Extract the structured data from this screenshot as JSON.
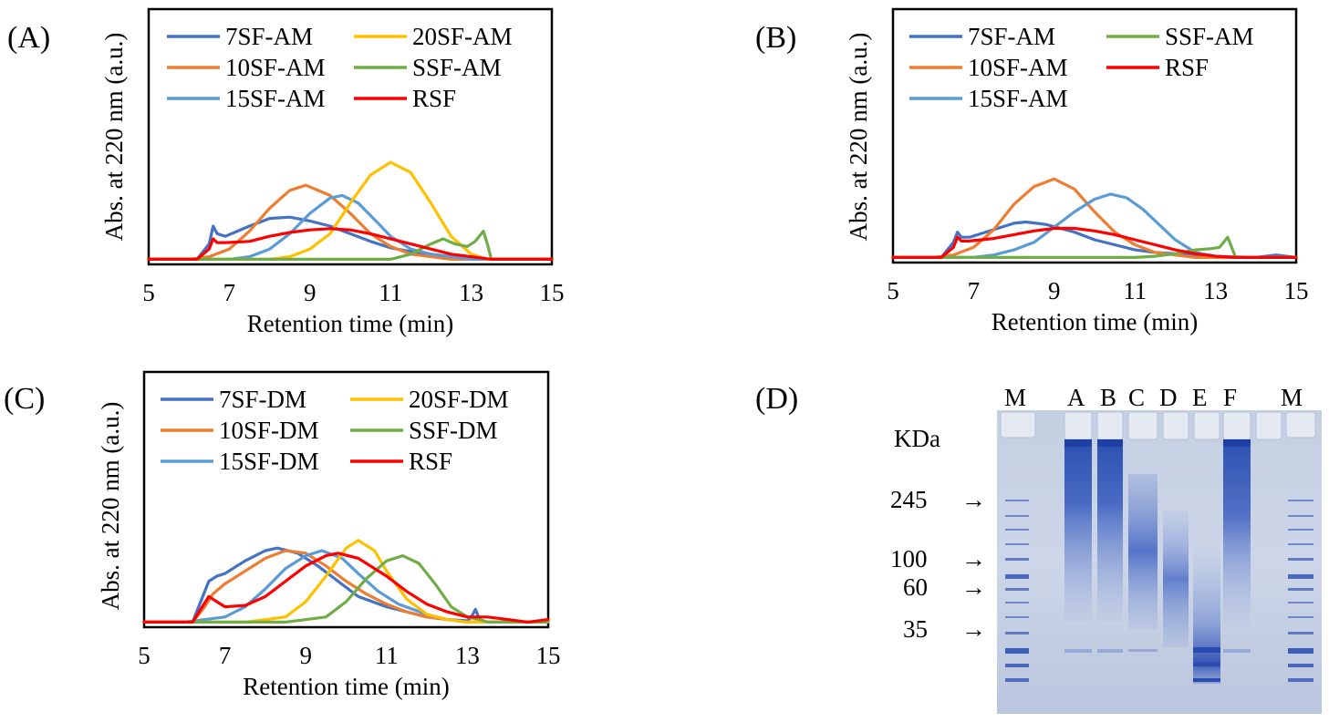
{
  "chart_data": [
    {
      "type": "line",
      "panel": "(A)",
      "xlabel": "Retention time (min)",
      "ylabel": "Abs. at 220 nm (a.u.)",
      "xlim": [
        5,
        15
      ],
      "xticks": [
        "5",
        "7",
        "9",
        "11",
        "13",
        "15"
      ],
      "ylim": [
        0,
        1
      ],
      "grid": false,
      "legend_position": "top",
      "series": [
        {
          "name": "7SF-AM",
          "color": "#4472C4",
          "x": [
            5,
            6.2,
            6.5,
            6.6,
            6.7,
            6.9,
            7.5,
            8,
            8.5,
            9,
            9.5,
            10,
            10.5,
            11,
            11.5,
            12,
            12.5,
            13,
            13.3,
            13.5,
            14,
            15
          ],
          "y": [
            0.02,
            0.02,
            0.08,
            0.15,
            0.12,
            0.11,
            0.15,
            0.18,
            0.185,
            0.17,
            0.15,
            0.12,
            0.09,
            0.065,
            0.05,
            0.04,
            0.03,
            0.025,
            0.02,
            0.02,
            0.02,
            0.02
          ]
        },
        {
          "name": "10SF-AM",
          "color": "#ED7D31",
          "x": [
            5,
            6,
            6.5,
            7,
            7.5,
            8,
            8.5,
            8.9,
            9.5,
            10,
            10.5,
            11,
            11.5,
            12,
            12.5,
            13,
            14,
            15
          ],
          "y": [
            0.02,
            0.02,
            0.03,
            0.06,
            0.13,
            0.22,
            0.29,
            0.31,
            0.27,
            0.2,
            0.12,
            0.07,
            0.04,
            0.03,
            0.02,
            0.02,
            0.02,
            0.02
          ]
        },
        {
          "name": "15SF-AM",
          "color": "#5B9BD5",
          "x": [
            5,
            7,
            7.5,
            8,
            8.5,
            9,
            9.5,
            9.8,
            10.2,
            10.7,
            11,
            11.5,
            12,
            12.5,
            13,
            14,
            15
          ],
          "y": [
            0.02,
            0.02,
            0.03,
            0.06,
            0.12,
            0.2,
            0.26,
            0.27,
            0.24,
            0.16,
            0.11,
            0.06,
            0.04,
            0.03,
            0.02,
            0.02,
            0.02
          ]
        },
        {
          "name": "20SF-AM",
          "color": "#FFC000",
          "x": [
            5,
            8,
            8.5,
            9,
            9.5,
            10,
            10.5,
            11,
            11.5,
            12,
            12.5,
            13,
            13.4,
            14,
            15
          ],
          "y": [
            0.02,
            0.02,
            0.03,
            0.06,
            0.12,
            0.24,
            0.35,
            0.4,
            0.36,
            0.24,
            0.11,
            0.04,
            0.02,
            0.02,
            0.02
          ]
        },
        {
          "name": "SSF-AM",
          "color": "#70AD47",
          "x": [
            5,
            10,
            11,
            11.5,
            12,
            12.3,
            12.6,
            12.9,
            13.1,
            13.3,
            13.4,
            13.5,
            14,
            15
          ],
          "y": [
            0.02,
            0.02,
            0.02,
            0.04,
            0.08,
            0.1,
            0.08,
            0.07,
            0.09,
            0.13,
            0.08,
            0.02,
            0.02,
            0.02
          ]
        },
        {
          "name": "RSF",
          "color": "#FF0000",
          "x": [
            5,
            6.2,
            6.5,
            6.6,
            6.7,
            6.9,
            7.5,
            8,
            8.5,
            9,
            9.5,
            10,
            10.5,
            11,
            11.5,
            12,
            12.5,
            13,
            13.5,
            14,
            15
          ],
          "y": [
            0.02,
            0.02,
            0.06,
            0.1,
            0.085,
            0.085,
            0.09,
            0.11,
            0.125,
            0.135,
            0.14,
            0.135,
            0.12,
            0.1,
            0.08,
            0.06,
            0.04,
            0.03,
            0.02,
            0.02,
            0.02
          ]
        }
      ]
    },
    {
      "type": "line",
      "panel": "(B)",
      "xlabel": "Retention time (min)",
      "ylabel": "Abs. at 220 nm (a.u.)",
      "xlim": [
        5,
        15
      ],
      "xticks": [
        "5",
        "7",
        "9",
        "11",
        "13",
        "15"
      ],
      "ylim": [
        0,
        1
      ],
      "grid": false,
      "legend_position": "top",
      "series": [
        {
          "name": "7SF-AM",
          "color": "#4472C4",
          "x": [
            5,
            6.2,
            6.5,
            6.6,
            6.7,
            6.9,
            7.5,
            8,
            8.3,
            8.8,
            9.5,
            10,
            10.5,
            11,
            11.5,
            12,
            12.5,
            13,
            13.5,
            14,
            14.5,
            15
          ],
          "y": [
            0.02,
            0.02,
            0.08,
            0.12,
            0.1,
            0.1,
            0.13,
            0.155,
            0.16,
            0.15,
            0.12,
            0.09,
            0.07,
            0.05,
            0.04,
            0.035,
            0.03,
            0.025,
            0.02,
            0.02,
            0.03,
            0.02
          ]
        },
        {
          "name": "10SF-AM",
          "color": "#ED7D31",
          "x": [
            5,
            6,
            6.5,
            7,
            7.5,
            8,
            8.5,
            9,
            9.5,
            10,
            10.5,
            11,
            11.5,
            12,
            12.5,
            13,
            14,
            15
          ],
          "y": [
            0.02,
            0.02,
            0.03,
            0.06,
            0.13,
            0.23,
            0.3,
            0.33,
            0.29,
            0.2,
            0.12,
            0.07,
            0.04,
            0.03,
            0.02,
            0.02,
            0.02,
            0.02
          ]
        },
        {
          "name": "15SF-AM",
          "color": "#5B9BD5",
          "x": [
            5,
            7,
            7.5,
            8,
            8.5,
            9,
            9.5,
            10,
            10.4,
            10.8,
            11.2,
            11.6,
            12,
            12.5,
            13,
            14,
            15
          ],
          "y": [
            0.02,
            0.02,
            0.03,
            0.05,
            0.08,
            0.14,
            0.2,
            0.25,
            0.27,
            0.255,
            0.21,
            0.15,
            0.09,
            0.04,
            0.025,
            0.02,
            0.02
          ]
        },
        {
          "name": "SSF-AM",
          "color": "#70AD47",
          "x": [
            5,
            10,
            11,
            11.5,
            12,
            12.5,
            12.9,
            13.1,
            13.3,
            13.4,
            13.5,
            14,
            15
          ],
          "y": [
            0.02,
            0.02,
            0.02,
            0.025,
            0.035,
            0.05,
            0.055,
            0.06,
            0.1,
            0.06,
            0.02,
            0.02,
            0.02
          ]
        },
        {
          "name": "RSF",
          "color": "#FF0000",
          "x": [
            5,
            6.2,
            6.5,
            6.6,
            6.7,
            6.9,
            7.5,
            8,
            8.5,
            9,
            9.5,
            10,
            10.5,
            11,
            11.5,
            12,
            12.5,
            13,
            13.5,
            14,
            15
          ],
          "y": [
            0.02,
            0.02,
            0.06,
            0.1,
            0.085,
            0.085,
            0.095,
            0.11,
            0.125,
            0.135,
            0.135,
            0.125,
            0.11,
            0.09,
            0.07,
            0.05,
            0.035,
            0.025,
            0.02,
            0.02,
            0.02
          ]
        }
      ]
    },
    {
      "type": "line",
      "panel": "(C)",
      "xlabel": "Retention time (min)",
      "ylabel": "Abs. at 220 nm (a.u.)",
      "xlim": [
        5,
        15
      ],
      "xticks": [
        "5",
        "7",
        "9",
        "11",
        "13",
        "15"
      ],
      "ylim": [
        0,
        1
      ],
      "grid": false,
      "legend_position": "top",
      "series": [
        {
          "name": "7SF-DM",
          "color": "#4472C4",
          "x": [
            5,
            6.2,
            6.4,
            6.6,
            6.8,
            7,
            7.5,
            8,
            8.3,
            8.8,
            9.3,
            9.8,
            10.3,
            11,
            11.5,
            12,
            12.5,
            13,
            13.1,
            13.2,
            13.3,
            13.5,
            14,
            15
          ],
          "y": [
            0.02,
            0.02,
            0.1,
            0.18,
            0.2,
            0.21,
            0.26,
            0.3,
            0.31,
            0.29,
            0.24,
            0.18,
            0.12,
            0.08,
            0.06,
            0.04,
            0.03,
            0.025,
            0.04,
            0.07,
            0.03,
            0.02,
            0.02,
            0.02
          ]
        },
        {
          "name": "10SF-DM",
          "color": "#ED7D31",
          "x": [
            5,
            6.2,
            6.5,
            6.7,
            7,
            7.5,
            8,
            8.5,
            9,
            9.5,
            10,
            10.5,
            11,
            11.5,
            12,
            12.5,
            13,
            13.5,
            14,
            15
          ],
          "y": [
            0.02,
            0.02,
            0.08,
            0.13,
            0.17,
            0.22,
            0.27,
            0.3,
            0.29,
            0.24,
            0.18,
            0.13,
            0.09,
            0.06,
            0.04,
            0.03,
            0.02,
            0.02,
            0.02,
            0.02
          ]
        },
        {
          "name": "15SF-DM",
          "color": "#5B9BD5",
          "x": [
            5,
            6,
            7,
            7.5,
            8,
            8.5,
            9,
            9.4,
            9.9,
            10.3,
            10.8,
            11.3,
            12,
            12.5,
            13,
            14,
            15
          ],
          "y": [
            0.02,
            0.02,
            0.04,
            0.08,
            0.15,
            0.23,
            0.28,
            0.3,
            0.27,
            0.21,
            0.14,
            0.09,
            0.05,
            0.03,
            0.02,
            0.02,
            0.02
          ]
        },
        {
          "name": "20SF-DM",
          "color": "#FFC000",
          "x": [
            5,
            7.5,
            8.5,
            9,
            9.5,
            10,
            10.3,
            10.7,
            11,
            11.5,
            12,
            12.5,
            13,
            14,
            15
          ],
          "y": [
            0.02,
            0.02,
            0.04,
            0.1,
            0.2,
            0.31,
            0.34,
            0.3,
            0.22,
            0.11,
            0.05,
            0.03,
            0.02,
            0.02,
            0.02
          ]
        },
        {
          "name": "SSF-DM",
          "color": "#70AD47",
          "x": [
            5,
            8.5,
            9.5,
            10,
            10.5,
            11,
            11.4,
            11.8,
            12.2,
            12.6,
            13,
            13.3,
            13.5,
            14,
            15
          ],
          "y": [
            0.02,
            0.02,
            0.04,
            0.1,
            0.19,
            0.26,
            0.28,
            0.25,
            0.17,
            0.08,
            0.04,
            0.03,
            0.02,
            0.02,
            0.02
          ]
        },
        {
          "name": "RSF",
          "color": "#FF0000",
          "x": [
            5,
            6.2,
            6.4,
            6.6,
            6.8,
            7,
            7.5,
            8,
            8.5,
            9,
            9.5,
            9.8,
            10.3,
            11,
            11.5,
            12,
            12.5,
            13,
            13.5,
            14,
            14.5,
            15
          ],
          "y": [
            0.02,
            0.02,
            0.07,
            0.12,
            0.1,
            0.08,
            0.085,
            0.12,
            0.18,
            0.24,
            0.28,
            0.29,
            0.27,
            0.2,
            0.14,
            0.09,
            0.06,
            0.04,
            0.04,
            0.03,
            0.02,
            0.03
          ]
        }
      ]
    }
  ],
  "panels": {
    "a": {
      "label": "(A)"
    },
    "b": {
      "label": "(B)"
    },
    "c": {
      "label": "(C)"
    },
    "d": {
      "label": "(D)",
      "unit": "KDa",
      "lanes": [
        "M",
        "A",
        "B",
        "C",
        "D",
        "E",
        "F",
        "M"
      ],
      "markers": [
        {
          "value": "245",
          "arrow": "→"
        },
        {
          "value": "100",
          "arrow": "→"
        },
        {
          "value": "60",
          "arrow": "→"
        },
        {
          "value": "35",
          "arrow": "→"
        }
      ]
    }
  }
}
